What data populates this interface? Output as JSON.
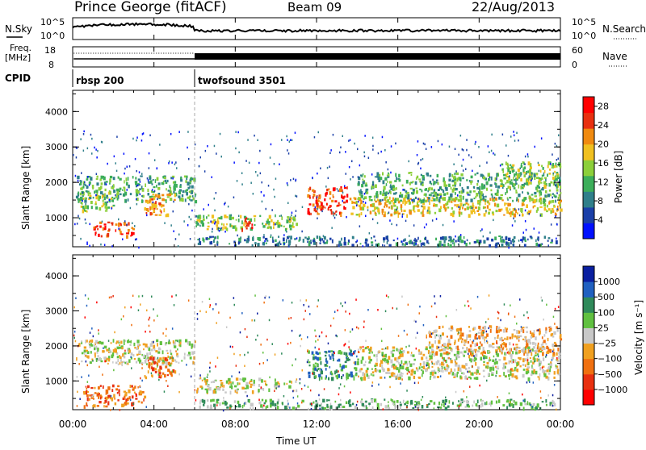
{
  "header": {
    "station": "Prince George (fitACF)",
    "beam": "Beam 09",
    "date": "22/Aug/2013"
  },
  "strip_labels": {
    "nsky": "N.Sky",
    "nsearch": "N.Search",
    "freq": "Freq.",
    "freq_unit": "[MHz]",
    "nave": "Nave",
    "cpid": "CPID",
    "nsky_top": "10^5",
    "nsky_bottom": "10^0",
    "nsearch_top": "10^5",
    "nsearch_bottom": "10^0",
    "freq_top": "18",
    "freq_bottom": "8",
    "nave_top": "60",
    "nave_bottom": "0"
  },
  "cpid_modes": [
    {
      "name": "rbsp 200",
      "start_hour": 0,
      "end_hour": 6
    },
    {
      "name": "twofsound 3501",
      "start_hour": 6,
      "end_hour": 24
    }
  ],
  "chart_data": [
    {
      "type": "heatmap",
      "panel": "power",
      "ylabel": "Slant Range [km]",
      "ylim": [
        180,
        4600
      ],
      "yticks": [
        "1000",
        "2000",
        "3000",
        "4000"
      ],
      "xlim_hours": [
        0,
        24
      ],
      "colorbar": {
        "label": "Power [dB]",
        "ticks": [
          "4",
          "8",
          "12",
          "16",
          "20",
          "24",
          "28"
        ],
        "range": [
          0,
          30
        ],
        "colors": [
          "#0010ff",
          "#1a3fa8",
          "#2f7f8a",
          "#3cae5a",
          "#8ccf3a",
          "#f0c020",
          "#f08a10",
          "#e83010",
          "#ff0000"
        ]
      },
      "features": [
        {
          "t0": 0.1,
          "t1": 6.0,
          "r0": 1500,
          "r1": 2200,
          "level": 12
        },
        {
          "t0": 0.2,
          "t1": 2.0,
          "r0": 1200,
          "r1": 1800,
          "level": 16
        },
        {
          "t0": 1.0,
          "t1": 3.0,
          "r0": 500,
          "r1": 900,
          "level": 28
        },
        {
          "t0": 3.5,
          "t1": 5.0,
          "r0": 1100,
          "r1": 1700,
          "level": 24
        },
        {
          "t0": 6.0,
          "t1": 11.0,
          "r0": 700,
          "r1": 1100,
          "level": 14
        },
        {
          "t0": 8.3,
          "t1": 8.9,
          "r0": 700,
          "r1": 1100,
          "level": 26
        },
        {
          "t0": 11.5,
          "t1": 13.5,
          "r0": 1100,
          "r1": 1900,
          "level": 28
        },
        {
          "t0": 13.5,
          "t1": 24.0,
          "r0": 1100,
          "r1": 1600,
          "level": 18
        },
        {
          "t0": 14.0,
          "t1": 24.0,
          "r0": 1500,
          "r1": 2300,
          "level": 10
        },
        {
          "t0": 6.0,
          "t1": 24.0,
          "r0": 250,
          "r1": 500,
          "level": 6
        },
        {
          "t0": 21.0,
          "t1": 24.0,
          "r0": 1900,
          "r1": 2600,
          "level": 14
        }
      ]
    },
    {
      "type": "heatmap",
      "panel": "velocity",
      "ylabel": "Slant Range [km]",
      "ylim": [
        180,
        4600
      ],
      "yticks": [
        "1000",
        "2000",
        "3000",
        "4000"
      ],
      "xlim_hours": [
        0,
        24
      ],
      "xlabel": "Time UT",
      "xticks": [
        "00:00",
        "04:00",
        "08:00",
        "12:00",
        "16:00",
        "20:00",
        "00:00"
      ],
      "colorbar": {
        "label": "Velocity [m s⁻¹]",
        "ticks": [
          "1000",
          "500",
          "100",
          "25",
          "−25",
          "−100",
          "−500",
          "−1000"
        ],
        "colors": [
          "#0a1fa0",
          "#2060c0",
          "#2f8a5a",
          "#60c040",
          "#c8c8c8",
          "#f0a020",
          "#f07010",
          "#e83010",
          "#ff0000"
        ]
      },
      "features": [
        {
          "t0": 0.1,
          "t1": 6.0,
          "r0": 1500,
          "r1": 2200,
          "level": 4
        },
        {
          "t0": 0.5,
          "t1": 3.5,
          "r0": 300,
          "r1": 900,
          "level": 6
        },
        {
          "t0": 3.5,
          "t1": 5.0,
          "r0": 1100,
          "r1": 1700,
          "level": 6
        },
        {
          "t0": 6.0,
          "t1": 11.0,
          "r0": 700,
          "r1": 1100,
          "level": 4
        },
        {
          "t0": 11.5,
          "t1": 14.0,
          "r0": 1100,
          "r1": 1900,
          "level": 2
        },
        {
          "t0": 14.0,
          "t1": 24.0,
          "r0": 1100,
          "r1": 2000,
          "level": 4
        },
        {
          "t0": 6.0,
          "t1": 24.0,
          "r0": 250,
          "r1": 500,
          "level": 3
        },
        {
          "t0": 17.5,
          "t1": 24.0,
          "r0": 1800,
          "r1": 2600,
          "level": 5
        }
      ]
    }
  ]
}
